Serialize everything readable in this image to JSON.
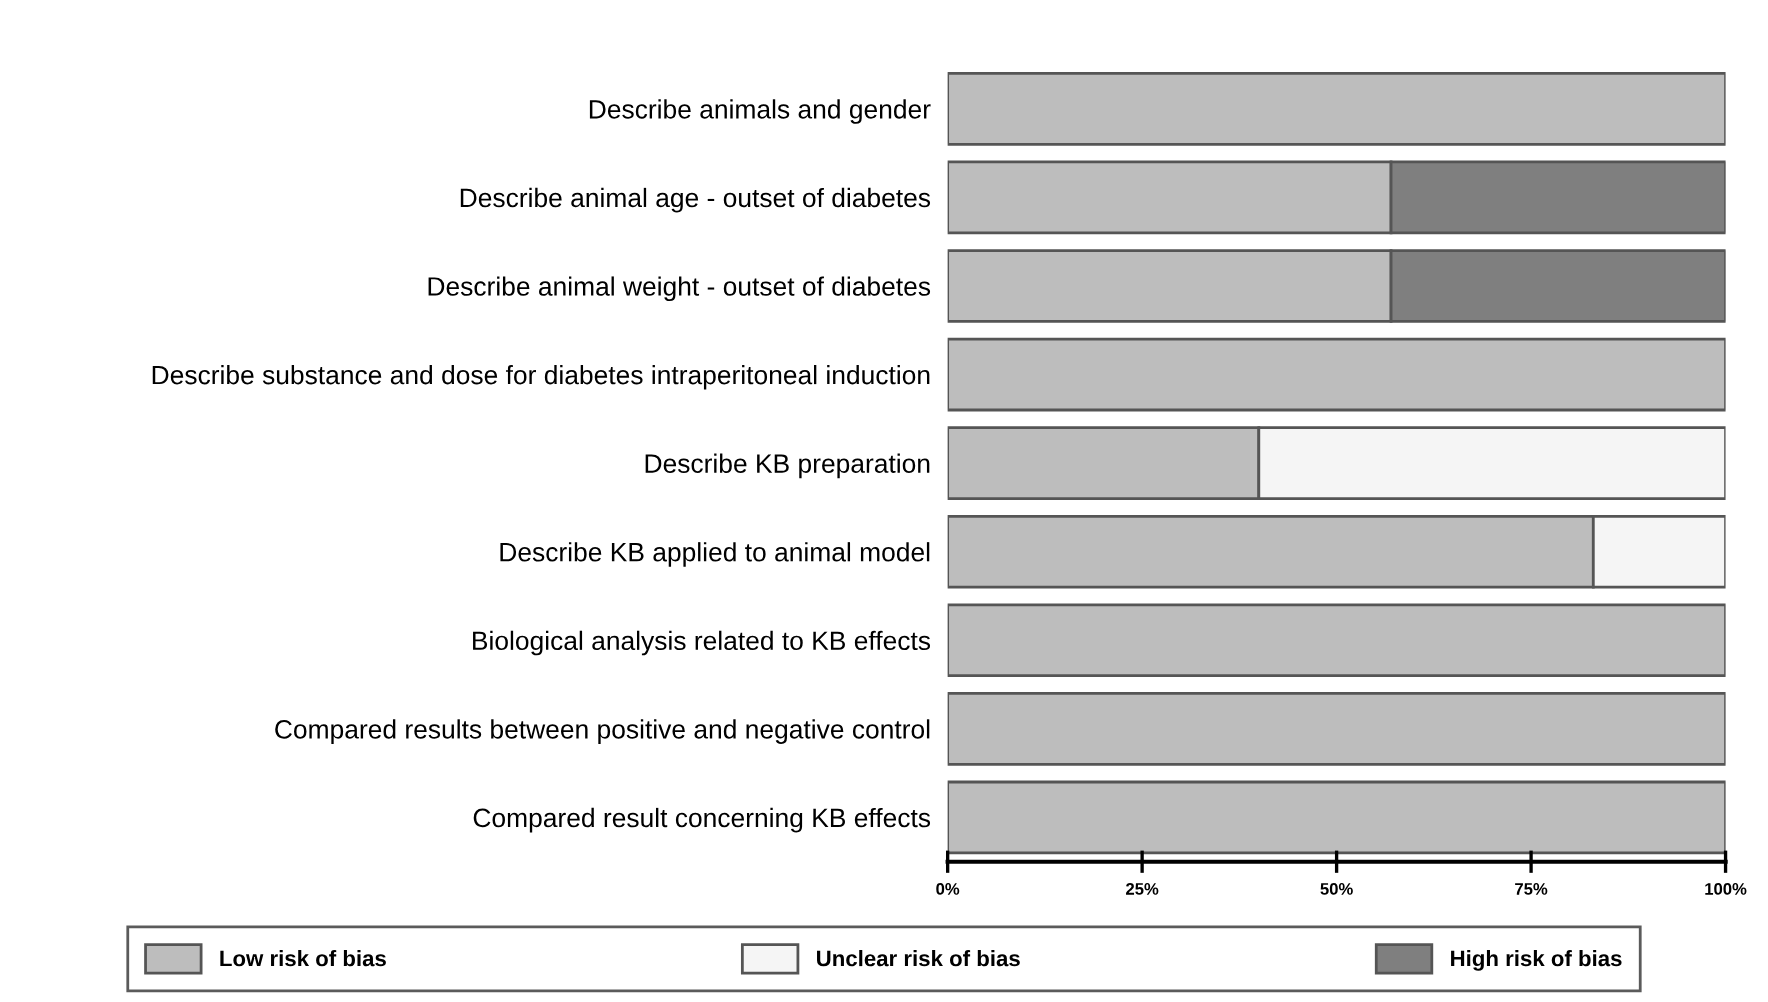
{
  "chart_data": {
    "type": "bar",
    "orientation": "horizontal",
    "stacked": true,
    "categories": [
      "Describe animals and gender",
      "Describe animal age - outset of diabetes",
      "Describe animal weight - outset of diabetes",
      "Describe substance and dose for diabetes intraperitoneal induction",
      "Describe KB preparation",
      "Describe KB applied to animal model",
      "Biological analysis related to KB effects",
      "Compared results between positive and negative control",
      "Compared result concerning KB effects"
    ],
    "series": [
      {
        "name": "Low risk of bias",
        "color": "#bdbdbd",
        "values": [
          100,
          57,
          57,
          100,
          40,
          83,
          100,
          100,
          100
        ]
      },
      {
        "name": "Unclear risk of bias",
        "color": "#f5f5f5",
        "values": [
          null,
          null,
          null,
          null,
          60,
          17,
          null,
          null,
          null
        ]
      },
      {
        "name": "High risk of bias",
        "color": "#7f7f7f",
        "values": [
          null,
          43,
          43,
          null,
          null,
          null,
          null,
          null,
          null
        ]
      }
    ],
    "xlim": [
      0,
      100
    ],
    "xticks": [
      {
        "value": 0,
        "label": "0%"
      },
      {
        "value": 25,
        "label": "25%"
      },
      {
        "value": 50,
        "label": "50%"
      },
      {
        "value": 75,
        "label": "75%"
      },
      {
        "value": 100,
        "label": "100%"
      }
    ],
    "legend": "bottom"
  }
}
